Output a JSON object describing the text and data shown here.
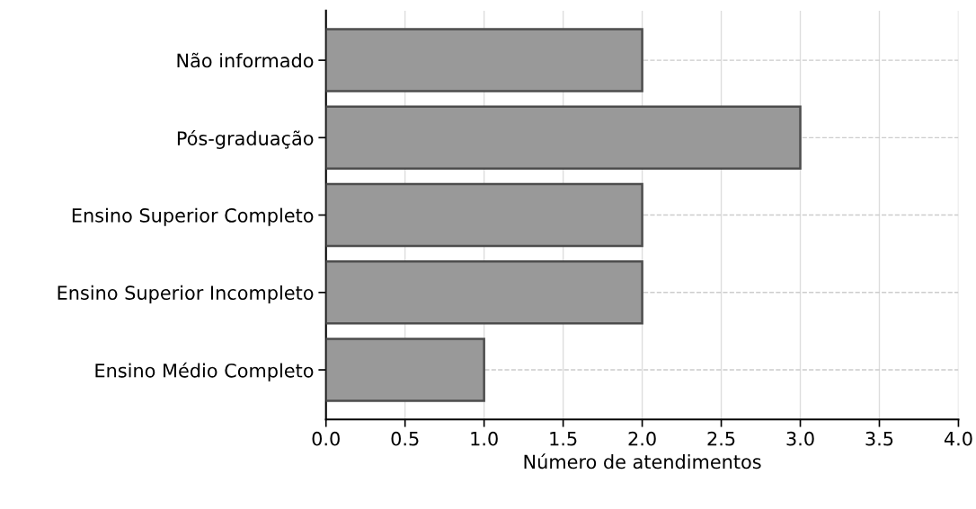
{
  "chart_data": {
    "type": "bar",
    "orientation": "horizontal",
    "xlabel": "Número de atendimentos",
    "categories": [
      "Não informado",
      "Pós-graduação",
      "Ensino Superior Completo",
      "Ensino Superior Incompleto",
      "Ensino Médio Completo"
    ],
    "values": [
      2,
      3,
      2,
      2,
      1
    ],
    "color": "#999999",
    "xlim": [
      0,
      4
    ],
    "xticks": [
      {
        "value": 0,
        "label": "0.0"
      },
      0.5,
      {
        "value": 1,
        "label": "1.0"
      },
      1.5,
      {
        "value": 2,
        "label": "2.0"
      },
      2.5,
      {
        "value": 3,
        "label": "3.0"
      },
      3.5,
      {
        "value": 4,
        "label": "4.0"
      }
    ],
    "grid": true
  }
}
